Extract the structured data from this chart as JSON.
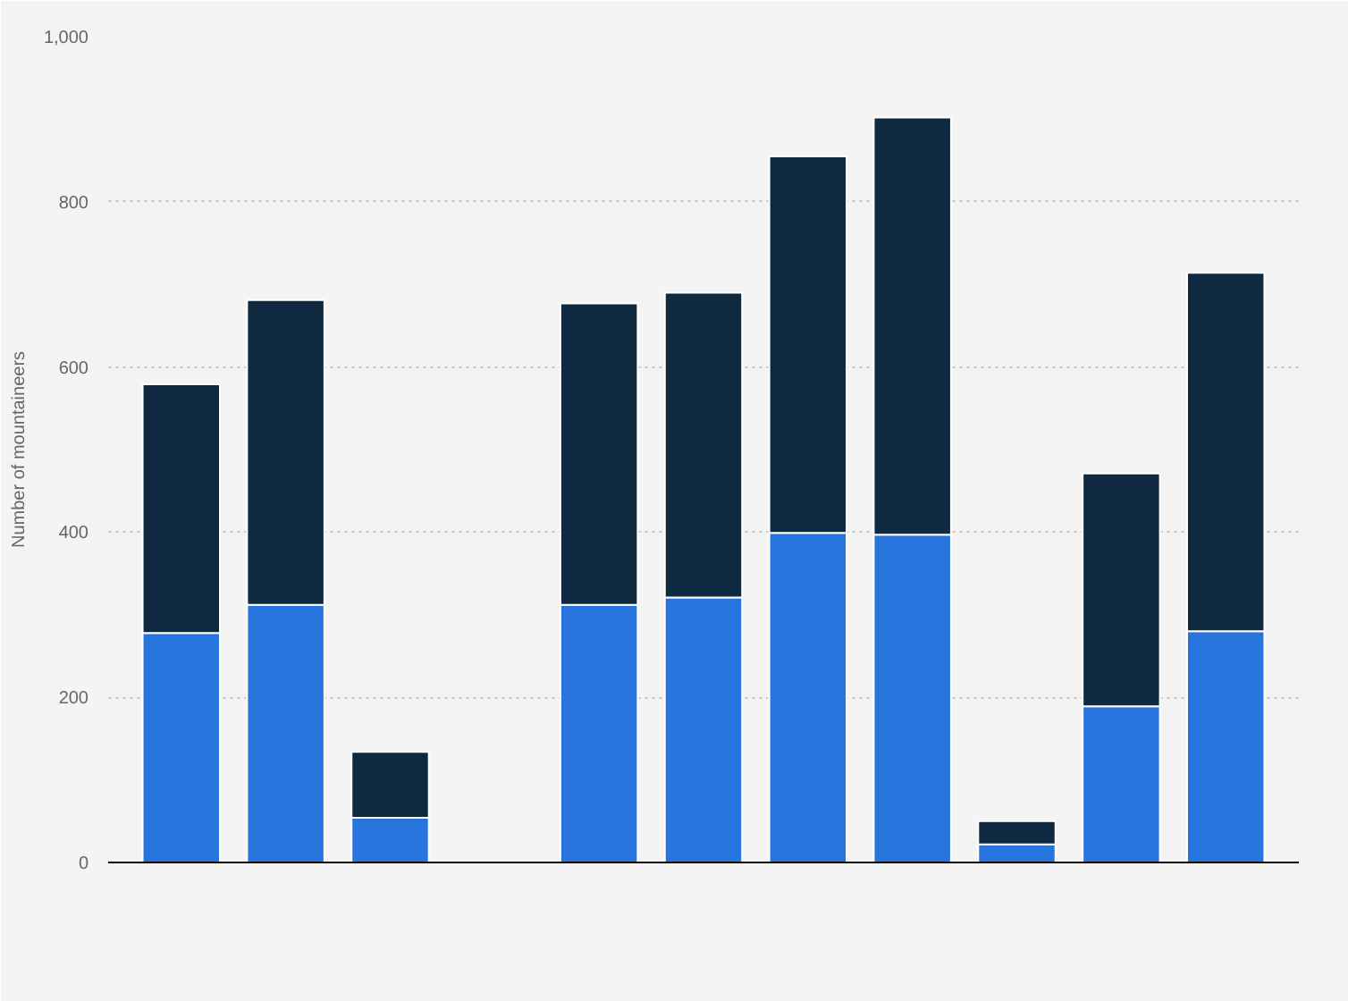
{
  "chart_data": {
    "type": "bar",
    "stacked": true,
    "ylabel": "Number of mountaineers",
    "categories": [
      null,
      null,
      null,
      null,
      null,
      null,
      null,
      null,
      null,
      null,
      null
    ],
    "series": [
      {
        "color": "#2876dd",
        "values": [
          278,
          312,
          54,
          null,
          312,
          321,
          399,
          397,
          22,
          189,
          280
        ]
      },
      {
        "color": "#0f2a40",
        "values": [
          301,
          369,
          80,
          null,
          365,
          369,
          456,
          505,
          28,
          282,
          434
        ]
      }
    ],
    "ylim": [
      0,
      1000
    ],
    "yticks": [
      0,
      200,
      400,
      600,
      800,
      {
        "value": 1000,
        "label": "1,000"
      }
    ],
    "grid": "y",
    "tick_labels": "y"
  }
}
